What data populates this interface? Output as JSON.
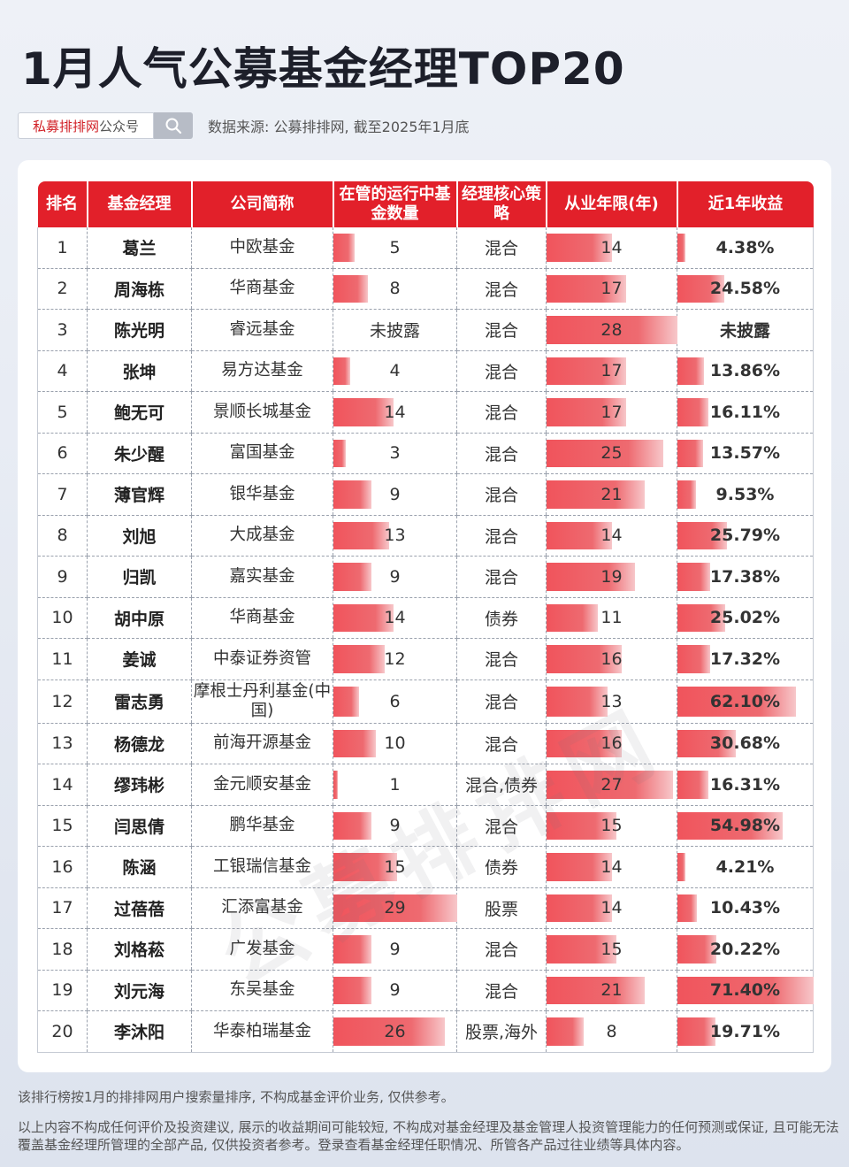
{
  "title": "1月人气公募基金经理TOP20",
  "tag_red": "私募排排网",
  "tag_gray": "公众号",
  "source": "数据来源: 公募排排网, 截至2025年1月底",
  "headers": [
    "排名",
    "基金经理",
    "公司简称",
    "在管的运行中基金数量",
    "经理核心策略",
    "从业年限(年)",
    "近1年收益"
  ],
  "rows": [
    {
      "rank": "1",
      "manager": "葛兰",
      "company": "中欧基金",
      "funds": "5",
      "funds_n": 5,
      "strategy": "混合",
      "years": "14",
      "years_n": 14,
      "ret": "4.38%",
      "ret_n": 4.38
    },
    {
      "rank": "2",
      "manager": "周海栋",
      "company": "华商基金",
      "funds": "8",
      "funds_n": 8,
      "strategy": "混合",
      "years": "17",
      "years_n": 17,
      "ret": "24.58%",
      "ret_n": 24.58
    },
    {
      "rank": "3",
      "manager": "陈光明",
      "company": "睿远基金",
      "funds": "未披露",
      "funds_n": null,
      "strategy": "混合",
      "years": "28",
      "years_n": 28,
      "ret": "未披露",
      "ret_n": null
    },
    {
      "rank": "4",
      "manager": "张坤",
      "company": "易方达基金",
      "funds": "4",
      "funds_n": 4,
      "strategy": "混合",
      "years": "17",
      "years_n": 17,
      "ret": "13.86%",
      "ret_n": 13.86
    },
    {
      "rank": "5",
      "manager": "鲍无可",
      "company": "景顺长城基金",
      "funds": "14",
      "funds_n": 14,
      "strategy": "混合",
      "years": "17",
      "years_n": 17,
      "ret": "16.11%",
      "ret_n": 16.11
    },
    {
      "rank": "6",
      "manager": "朱少醒",
      "company": "富国基金",
      "funds": "3",
      "funds_n": 3,
      "strategy": "混合",
      "years": "25",
      "years_n": 25,
      "ret": "13.57%",
      "ret_n": 13.57
    },
    {
      "rank": "7",
      "manager": "薄官辉",
      "company": "银华基金",
      "funds": "9",
      "funds_n": 9,
      "strategy": "混合",
      "years": "21",
      "years_n": 21,
      "ret": "9.53%",
      "ret_n": 9.53
    },
    {
      "rank": "8",
      "manager": "刘旭",
      "company": "大成基金",
      "funds": "13",
      "funds_n": 13,
      "strategy": "混合",
      "years": "14",
      "years_n": 14,
      "ret": "25.79%",
      "ret_n": 25.79
    },
    {
      "rank": "9",
      "manager": "归凯",
      "company": "嘉实基金",
      "funds": "9",
      "funds_n": 9,
      "strategy": "混合",
      "years": "19",
      "years_n": 19,
      "ret": "17.38%",
      "ret_n": 17.38
    },
    {
      "rank": "10",
      "manager": "胡中原",
      "company": "华商基金",
      "funds": "14",
      "funds_n": 14,
      "strategy": "债券",
      "years": "11",
      "years_n": 11,
      "ret": "25.02%",
      "ret_n": 25.02
    },
    {
      "rank": "11",
      "manager": "姜诚",
      "company": "中泰证券资管",
      "funds": "12",
      "funds_n": 12,
      "strategy": "混合",
      "years": "16",
      "years_n": 16,
      "ret": "17.32%",
      "ret_n": 17.32
    },
    {
      "rank": "12",
      "manager": "雷志勇",
      "company": "摩根士丹利基金(中国)",
      "funds": "6",
      "funds_n": 6,
      "strategy": "混合",
      "years": "13",
      "years_n": 13,
      "ret": "62.10%",
      "ret_n": 62.1
    },
    {
      "rank": "13",
      "manager": "杨德龙",
      "company": "前海开源基金",
      "funds": "10",
      "funds_n": 10,
      "strategy": "混合",
      "years": "16",
      "years_n": 16,
      "ret": "30.68%",
      "ret_n": 30.68
    },
    {
      "rank": "14",
      "manager": "缪玮彬",
      "company": "金元顺安基金",
      "funds": "1",
      "funds_n": 1,
      "strategy": "混合,债券",
      "years": "27",
      "years_n": 27,
      "ret": "16.31%",
      "ret_n": 16.31
    },
    {
      "rank": "15",
      "manager": "闫思倩",
      "company": "鹏华基金",
      "funds": "9",
      "funds_n": 9,
      "strategy": "混合",
      "years": "15",
      "years_n": 15,
      "ret": "54.98%",
      "ret_n": 54.98
    },
    {
      "rank": "16",
      "manager": "陈涵",
      "company": "工银瑞信基金",
      "funds": "15",
      "funds_n": 15,
      "strategy": "债券",
      "years": "14",
      "years_n": 14,
      "ret": "4.21%",
      "ret_n": 4.21
    },
    {
      "rank": "17",
      "manager": "过蓓蓓",
      "company": "汇添富基金",
      "funds": "29",
      "funds_n": 29,
      "strategy": "股票",
      "years": "14",
      "years_n": 14,
      "ret": "10.43%",
      "ret_n": 10.43
    },
    {
      "rank": "18",
      "manager": "刘格菘",
      "company": "广发基金",
      "funds": "9",
      "funds_n": 9,
      "strategy": "混合",
      "years": "15",
      "years_n": 15,
      "ret": "20.22%",
      "ret_n": 20.22
    },
    {
      "rank": "19",
      "manager": "刘元海",
      "company": "东吴基金",
      "funds": "9",
      "funds_n": 9,
      "strategy": "混合",
      "years": "21",
      "years_n": 21,
      "ret": "71.40%",
      "ret_n": 71.4
    },
    {
      "rank": "20",
      "manager": "李沐阳",
      "company": "华泰柏瑞基金",
      "funds": "26",
      "funds_n": 26,
      "strategy": "股票,海外",
      "years": "8",
      "years_n": 8,
      "ret": "19.71%",
      "ret_n": 19.71
    }
  ],
  "watermark": "公募排排网",
  "footnote1": "该排行榜按1月的排排网用户搜索量排序, 不构成基金评价业务, 仅供参考。",
  "footnote2": "以上内容不构成任何评价及投资建议, 展示的收益期间可能较短, 不构成对基金经理及基金管理人投资管理能力的任何预测或保证, 且可能无法覆盖基金经理所管理的全部产品, 仅供投资者参考。登录查看基金经理任职情况、所管各产品过往业绩等具体内容。",
  "colors": {
    "header_red": "#e2202a",
    "bar_red": "#f0545c",
    "tag_red": "#d11f25"
  }
}
